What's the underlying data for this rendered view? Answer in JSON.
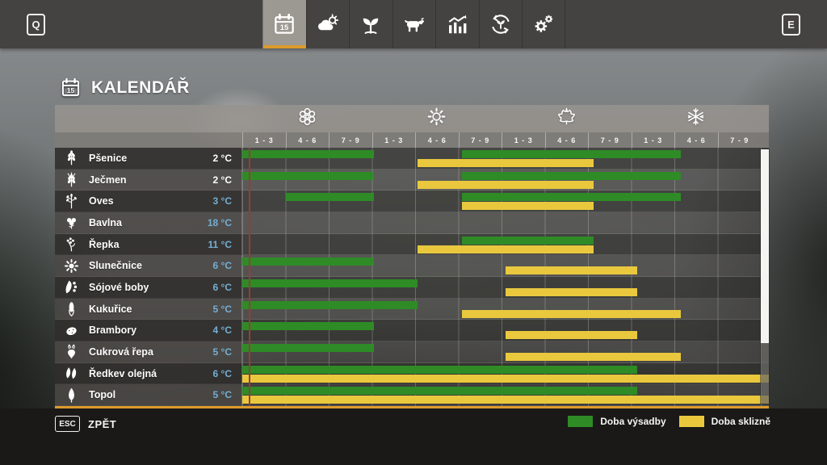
{
  "topbar": {
    "left_key": "Q",
    "right_key": "E",
    "tabs": [
      {
        "id": "calendar",
        "icon": "calendar-icon",
        "active": true
      },
      {
        "id": "weather",
        "icon": "weather-icon",
        "active": false
      },
      {
        "id": "crops",
        "icon": "plant-icon",
        "active": false
      },
      {
        "id": "animals",
        "icon": "animals-icon",
        "active": false
      },
      {
        "id": "statistics",
        "icon": "statistics-icon",
        "active": false
      },
      {
        "id": "economy",
        "icon": "economy-cycle-icon",
        "active": false
      },
      {
        "id": "settings",
        "icon": "settings-icon",
        "active": false
      }
    ]
  },
  "page": {
    "title": "KALENDÁŘ",
    "title_icon": "calendar-icon"
  },
  "calendar": {
    "month_labels": [
      "1 - 3",
      "4 - 6",
      "7 - 9"
    ],
    "seasons": [
      {
        "name": "spring",
        "icon": "flower-icon"
      },
      {
        "name": "summer",
        "icon": "sun-icon"
      },
      {
        "name": "autumn",
        "icon": "maple-leaf-icon"
      },
      {
        "name": "winter",
        "icon": "snowflake-icon"
      }
    ],
    "columns_per_season": 3,
    "current_day_position": 0.15,
    "rows": [
      {
        "crop": "Pšenice",
        "icon": "wheat-icon",
        "temp": "2 °C",
        "temp_reached": true,
        "plant": [
          [
            0,
            3
          ],
          [
            5,
            10
          ]
        ],
        "harvest": [
          [
            4,
            8
          ]
        ]
      },
      {
        "crop": "Ječmen",
        "icon": "barley-icon",
        "temp": "2 °C",
        "temp_reached": true,
        "plant": [
          [
            0,
            3
          ],
          [
            5,
            10
          ]
        ],
        "harvest": [
          [
            4,
            8
          ]
        ]
      },
      {
        "crop": "Oves",
        "icon": "oat-icon",
        "temp": "3 °C",
        "temp_reached": false,
        "plant": [
          [
            1,
            3
          ],
          [
            5,
            10
          ]
        ],
        "harvest": [
          [
            5,
            8
          ]
        ]
      },
      {
        "crop": "Bavlna",
        "icon": "cotton-icon",
        "temp": "18 °C",
        "temp_reached": false,
        "plant": [],
        "harvest": []
      },
      {
        "crop": "Řepka",
        "icon": "canola-icon",
        "temp": "11 °C",
        "temp_reached": false,
        "plant": [
          [
            5,
            8
          ]
        ],
        "harvest": [
          [
            4,
            8
          ]
        ]
      },
      {
        "crop": "Slunečnice",
        "icon": "sunflower-icon",
        "temp": "6 °C",
        "temp_reached": false,
        "plant": [
          [
            0,
            3
          ]
        ],
        "harvest": [
          [
            6,
            9
          ]
        ]
      },
      {
        "crop": "Sójové boby",
        "icon": "soybean-icon",
        "temp": "6 °C",
        "temp_reached": false,
        "plant": [
          [
            0,
            4
          ]
        ],
        "harvest": [
          [
            6,
            9
          ]
        ]
      },
      {
        "crop": "Kukuřice",
        "icon": "corn-icon",
        "temp": "5 °C",
        "temp_reached": false,
        "plant": [
          [
            0,
            4
          ]
        ],
        "harvest": [
          [
            5,
            10
          ]
        ]
      },
      {
        "crop": "Brambory",
        "icon": "potato-icon",
        "temp": "4 °C",
        "temp_reached": false,
        "plant": [
          [
            0,
            3
          ]
        ],
        "harvest": [
          [
            6,
            9
          ]
        ]
      },
      {
        "crop": "Cukrová řepa",
        "icon": "sugarbeet-icon",
        "temp": "5 °C",
        "temp_reached": false,
        "plant": [
          [
            0,
            3
          ]
        ],
        "harvest": [
          [
            6,
            10
          ]
        ]
      },
      {
        "crop": "Ředkev olejná",
        "icon": "oilseed-radish-icon",
        "temp": "6 °C",
        "temp_reached": false,
        "plant": [
          [
            0,
            9
          ]
        ],
        "harvest": [
          [
            0,
            12
          ]
        ]
      },
      {
        "crop": "Topol",
        "icon": "poplar-icon",
        "temp": "5 °C",
        "temp_reached": false,
        "plant": [
          [
            0,
            9
          ]
        ],
        "harvest": [
          [
            0,
            12
          ]
        ]
      }
    ]
  },
  "legend": {
    "items": [
      {
        "label": "Doba výsadby",
        "color": "#2e8b26"
      },
      {
        "label": "Doba sklizně",
        "color": "#e9c83e"
      }
    ]
  },
  "footer": {
    "back_key": "ESC",
    "back_label": "ZPĚT"
  },
  "colors": {
    "plant": "#2e8b26",
    "harvest": "#e9c83e",
    "accent_orange": "#dd9a2b",
    "temp_ready": "#ffffff",
    "temp_waiting": "#74aed4",
    "current_day_line": "#993c38"
  }
}
